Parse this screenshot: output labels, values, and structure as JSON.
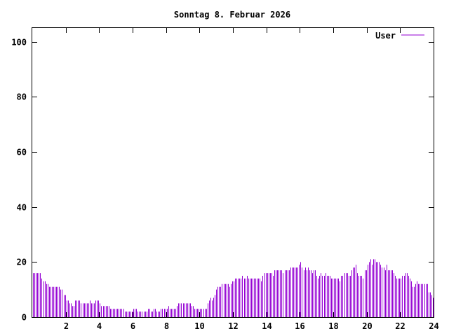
{
  "chart_data": {
    "type": "bar",
    "title": "Sonntag 8. Februar 2026",
    "xlabel": "",
    "ylabel": "",
    "xlim": [
      0,
      24
    ],
    "ylim": [
      0,
      105
    ],
    "x_ticks": [
      {
        "value": 2,
        "label": "2"
      },
      {
        "value": 4,
        "label": "4"
      },
      {
        "value": 6,
        "label": "6"
      },
      {
        "value": 8,
        "label": "8"
      },
      {
        "value": 10,
        "label": "10"
      },
      {
        "value": 12,
        "label": "12"
      },
      {
        "value": 14,
        "label": "14"
      },
      {
        "value": 16,
        "label": "16"
      },
      {
        "value": 18,
        "label": "18"
      },
      {
        "value": 20,
        "label": "20"
      },
      {
        "value": 22,
        "label": "22"
      },
      {
        "value": 24,
        "label": "24"
      }
    ],
    "y_ticks": [
      {
        "value": 0,
        "label": "0"
      },
      {
        "value": 20,
        "label": "20"
      },
      {
        "value": 40,
        "label": "40"
      },
      {
        "value": 60,
        "label": "60"
      },
      {
        "value": 80,
        "label": "80"
      },
      {
        "value": 100,
        "label": "100"
      }
    ],
    "grid": false,
    "legend": {
      "position": "top-right",
      "entries": [
        "User"
      ]
    },
    "series": [
      {
        "name": "User",
        "color": "#9400d3",
        "x_step_hours": 0.0833,
        "values": [
          16,
          16,
          16,
          16,
          16,
          16,
          14,
          13,
          13,
          12,
          12,
          11,
          11,
          11,
          11,
          11,
          11,
          11,
          11,
          10,
          10,
          8,
          8,
          6,
          6,
          5,
          5,
          4,
          4,
          6,
          6,
          6,
          6,
          5,
          5,
          5,
          5,
          5,
          5,
          6,
          5,
          5,
          5,
          6,
          6,
          6,
          5,
          4,
          4,
          4,
          4,
          4,
          4,
          3,
          3,
          3,
          3,
          3,
          3,
          3,
          3,
          3,
          3,
          2,
          2,
          2,
          2,
          2,
          2,
          3,
          3,
          3,
          2,
          2,
          2,
          2,
          2,
          2,
          2,
          3,
          3,
          2,
          2,
          3,
          3,
          2,
          2,
          2,
          3,
          3,
          3,
          3,
          3,
          4,
          3,
          3,
          3,
          3,
          3,
          4,
          5,
          5,
          5,
          5,
          5,
          5,
          5,
          5,
          5,
          4,
          4,
          3,
          3,
          3,
          3,
          3,
          3,
          3,
          3,
          3,
          5,
          6,
          7,
          6,
          7,
          8,
          10,
          11,
          11,
          11,
          12,
          12,
          12,
          12,
          12,
          11,
          12,
          13,
          13,
          14,
          14,
          14,
          14,
          14,
          15,
          14,
          14,
          15,
          14,
          14,
          14,
          14,
          14,
          14,
          14,
          14,
          14,
          13,
          15,
          16,
          16,
          16,
          16,
          16,
          16,
          15,
          17,
          17,
          17,
          17,
          17,
          17,
          16,
          17,
          17,
          17,
          17,
          18,
          18,
          18,
          18,
          18,
          18,
          19,
          20,
          18,
          17,
          18,
          17,
          18,
          17,
          17,
          16,
          17,
          17,
          15,
          14,
          15,
          16,
          15,
          15,
          16,
          15,
          15,
          15,
          14,
          14,
          14,
          14,
          14,
          14,
          13,
          15,
          15,
          16,
          16,
          16,
          15,
          15,
          17,
          18,
          18,
          19,
          16,
          15,
          15,
          15,
          14,
          17,
          17,
          19,
          20,
          21,
          19,
          21,
          21,
          20,
          20,
          20,
          19,
          18,
          18,
          17,
          19,
          17,
          17,
          17,
          17,
          16,
          15,
          14,
          14,
          14,
          14,
          15,
          15,
          16,
          16,
          15,
          14,
          13,
          11,
          11,
          12,
          13,
          12,
          12,
          12,
          12,
          12,
          12,
          12,
          9,
          9,
          8,
          7
        ]
      }
    ]
  }
}
